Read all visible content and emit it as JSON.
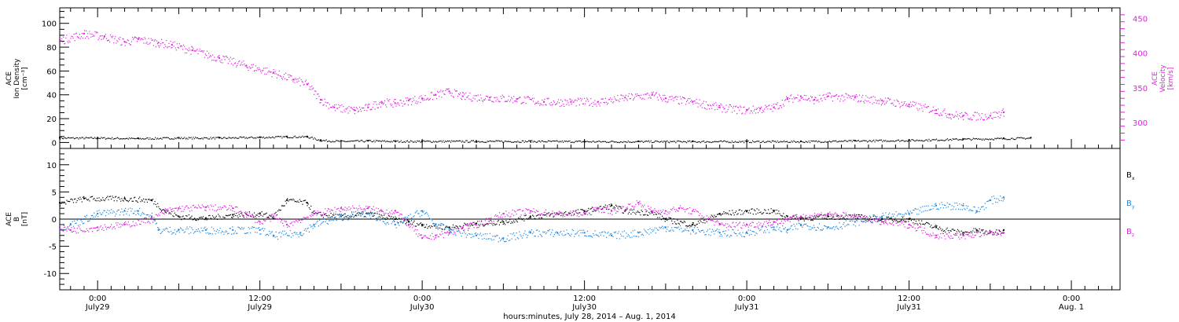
{
  "colors": {
    "axis": "#000000",
    "magenta": "#e020e0",
    "blue": "#1a86e0",
    "black": "#000000"
  },
  "xlabel": "hours:minutes, July 28, 2014 – Aug.  1, 2014",
  "x_ticks": [
    {
      "time": "0:00",
      "date": "July29",
      "hour": 24
    },
    {
      "time": "12:00",
      "date": "July29",
      "hour": 36
    },
    {
      "time": "0:00",
      "date": "July30",
      "hour": 48
    },
    {
      "time": "12:00",
      "date": "July30",
      "hour": 60
    },
    {
      "time": "0:00",
      "date": "July31",
      "hour": 72
    },
    {
      "time": "12:00",
      "date": "July31",
      "hour": 84
    },
    {
      "time": "0:00",
      "date": "Aug. 1",
      "hour": 96
    }
  ],
  "x_range_hours": [
    21.2,
    99.6
  ],
  "chart_data": [
    {
      "type": "scatter",
      "panel": "top",
      "ylabel_left": [
        "ACE",
        "Ion Density",
        "[cm⁻³]"
      ],
      "ylabel_right": [
        "ACE",
        "Velocity",
        "[km/s]"
      ],
      "ylim": [
        -5,
        113
      ],
      "ylim_right": [
        263,
        465
      ],
      "left_ticks": [
        0,
        20,
        40,
        60,
        80,
        100
      ],
      "right_ticks": [
        300,
        350,
        400,
        450
      ],
      "series": [
        {
          "axis": "left",
          "color": "#000000",
          "points": [
            [
              21.2,
              4
            ],
            [
              24,
              4
            ],
            [
              27,
              3.5
            ],
            [
              30,
              4
            ],
            [
              33,
              4
            ],
            [
              36,
              4.5
            ],
            [
              38,
              5
            ],
            [
              39.5,
              5
            ],
            [
              40.5,
              2
            ],
            [
              42,
              1.2
            ],
            [
              44,
              1.5
            ],
            [
              46,
              1.2
            ],
            [
              48,
              1.2
            ],
            [
              52,
              1.2
            ],
            [
              56,
              1.2
            ],
            [
              60,
              1
            ],
            [
              64,
              1
            ],
            [
              68,
              1
            ],
            [
              72,
              1
            ],
            [
              76,
              1
            ],
            [
              80,
              1.5
            ],
            [
              84,
              2
            ],
            [
              88,
              3
            ],
            [
              91,
              3.5
            ],
            [
              93,
              4
            ]
          ]
        },
        {
          "axis": "right",
          "color": "#e020e0",
          "points": [
            [
              21.2,
              418
            ],
            [
              23,
              428
            ],
            [
              24.5,
              424
            ],
            [
              26,
              416
            ],
            [
              27,
              420
            ],
            [
              28.5,
              415
            ],
            [
              29.5,
              412
            ],
            [
              31,
              404
            ],
            [
              33,
              393
            ],
            [
              35,
              382
            ],
            [
              37,
              372
            ],
            [
              38.5,
              362
            ],
            [
              39.5,
              355
            ],
            [
              40.5,
              333
            ],
            [
              41.5,
              322
            ],
            [
              43,
              318
            ],
            [
              44,
              322
            ],
            [
              45,
              330
            ],
            [
              46,
              328
            ],
            [
              47,
              332
            ],
            [
              48,
              335
            ],
            [
              49,
              340
            ],
            [
              50,
              345
            ],
            [
              51,
              338
            ],
            [
              53,
              336
            ],
            [
              55,
              334
            ],
            [
              57,
              330
            ],
            [
              59,
              330
            ],
            [
              61,
              330
            ],
            [
              63,
              336
            ],
            [
              65,
              340
            ],
            [
              66,
              335
            ],
            [
              68,
              330
            ],
            [
              70,
              322
            ],
            [
              72,
              318
            ],
            [
              73,
              320
            ],
            [
              74,
              322
            ],
            [
              75,
              334
            ],
            [
              76,
              338
            ],
            [
              77,
              333
            ],
            [
              78,
              338
            ],
            [
              80,
              336
            ],
            [
              82,
              332
            ],
            [
              84,
              326
            ],
            [
              86,
              318
            ],
            [
              87,
              312
            ],
            [
              88,
              310
            ],
            [
              90,
              310
            ],
            [
              91,
              315
            ]
          ]
        }
      ]
    },
    {
      "type": "scatter",
      "panel": "bottom",
      "ylabel_left": [
        "ACE",
        "B",
        "[nT]"
      ],
      "ylim": [
        -13,
        13
      ],
      "left_ticks": [
        -10,
        -5,
        0,
        5,
        10
      ],
      "legend_placement": "right",
      "series": [
        {
          "name": "Bx",
          "name_main": "B",
          "name_sub": "x",
          "color": "#000000",
          "points": [
            [
              21.2,
              3
            ],
            [
              23,
              3.8
            ],
            [
              26,
              3.8
            ],
            [
              28,
              3.5
            ],
            [
              29,
              1.5
            ],
            [
              30,
              0.5
            ],
            [
              32,
              0.2
            ],
            [
              34,
              0.8
            ],
            [
              36,
              1
            ],
            [
              37,
              0.5
            ],
            [
              38,
              3.5
            ],
            [
              39.5,
              3
            ],
            [
              40,
              1
            ],
            [
              42,
              0.5
            ],
            [
              44,
              1
            ],
            [
              46,
              0
            ],
            [
              47,
              -0.5
            ],
            [
              48,
              -1
            ],
            [
              50,
              -1.5
            ],
            [
              52,
              -0.8
            ],
            [
              54,
              -0.5
            ],
            [
              56,
              0.5
            ],
            [
              58,
              1
            ],
            [
              60,
              1.5
            ],
            [
              62,
              2.5
            ],
            [
              63,
              1.5
            ],
            [
              65,
              1.2
            ],
            [
              66,
              0
            ],
            [
              68,
              -1
            ],
            [
              70,
              1
            ],
            [
              72,
              1.5
            ],
            [
              74,
              1.5
            ],
            [
              75,
              0.5
            ],
            [
              76,
              0.2
            ],
            [
              78,
              0.5
            ],
            [
              80,
              0.5
            ],
            [
              82,
              0
            ],
            [
              84,
              0
            ],
            [
              86,
              -1.5
            ],
            [
              88,
              -2.5
            ],
            [
              89,
              -2
            ],
            [
              90,
              -2.5
            ],
            [
              91,
              -2
            ]
          ]
        },
        {
          "name": "By",
          "name_main": "B",
          "name_sub": "y",
          "color": "#1a86e0",
          "points": [
            [
              21.2,
              -1.5
            ],
            [
              22,
              -1
            ],
            [
              23,
              0
            ],
            [
              24,
              1
            ],
            [
              26,
              1.5
            ],
            [
              27,
              1.5
            ],
            [
              28,
              0.5
            ],
            [
              28.5,
              -2
            ],
            [
              30,
              -2
            ],
            [
              32,
              -2
            ],
            [
              34,
              -2
            ],
            [
              36,
              -2
            ],
            [
              37,
              -3
            ],
            [
              39,
              -2.5
            ],
            [
              40,
              -1
            ],
            [
              42,
              0.5
            ],
            [
              44,
              1
            ],
            [
              46,
              -1
            ],
            [
              48,
              1.5
            ],
            [
              49,
              -1
            ],
            [
              50,
              -2
            ],
            [
              52,
              -3
            ],
            [
              54,
              -3.5
            ],
            [
              56,
              -2.5
            ],
            [
              58,
              -2.5
            ],
            [
              60,
              -2.5
            ],
            [
              62,
              -3
            ],
            [
              64,
              -2.5
            ],
            [
              66,
              -1.5
            ],
            [
              68,
              -2
            ],
            [
              70,
              -2.5
            ],
            [
              72,
              -2.5
            ],
            [
              74,
              -1.5
            ],
            [
              75,
              -2
            ],
            [
              76,
              -1
            ],
            [
              78,
              -1.5
            ],
            [
              80,
              -0.5
            ],
            [
              82,
              0.5
            ],
            [
              84,
              1
            ],
            [
              86,
              2.5
            ],
            [
              88,
              2.5
            ],
            [
              89,
              1.5
            ],
            [
              90,
              3.5
            ],
            [
              91,
              4
            ]
          ]
        },
        {
          "name": "Bz",
          "name_main": "B",
          "name_sub": "z",
          "color": "#e020e0",
          "points": [
            [
              21.2,
              -1.5
            ],
            [
              22,
              -2
            ],
            [
              24,
              -1.5
            ],
            [
              26,
              -1
            ],
            [
              28,
              0
            ],
            [
              29,
              1.5
            ],
            [
              30,
              2
            ],
            [
              32,
              2.2
            ],
            [
              34,
              2
            ],
            [
              35,
              1
            ],
            [
              36,
              -0.5
            ],
            [
              37,
              0.5
            ],
            [
              38,
              -1
            ],
            [
              40,
              1
            ],
            [
              42,
              2
            ],
            [
              44,
              2
            ],
            [
              45,
              1.5
            ],
            [
              46,
              1.5
            ],
            [
              47,
              -1
            ],
            [
              48,
              -3.5
            ],
            [
              49,
              -3
            ],
            [
              50,
              -2.5
            ],
            [
              51,
              -1.5
            ],
            [
              52,
              -1
            ],
            [
              53,
              0
            ],
            [
              54,
              1
            ],
            [
              56,
              1.5
            ],
            [
              58,
              1
            ],
            [
              60,
              1
            ],
            [
              61,
              2
            ],
            [
              62,
              1.5
            ],
            [
              64,
              3
            ],
            [
              65,
              1.5
            ],
            [
              66,
              1.5
            ],
            [
              67,
              2
            ],
            [
              68,
              1.5
            ],
            [
              70,
              -1
            ],
            [
              72,
              -1
            ],
            [
              74,
              -0.5
            ],
            [
              75,
              0
            ],
            [
              76,
              0.5
            ],
            [
              78,
              1
            ],
            [
              80,
              0.5
            ],
            [
              82,
              -0.5
            ],
            [
              84,
              -1
            ],
            [
              86,
              -3
            ],
            [
              88,
              -3
            ],
            [
              90,
              -2.5
            ],
            [
              91,
              -2.5
            ]
          ]
        }
      ]
    }
  ]
}
